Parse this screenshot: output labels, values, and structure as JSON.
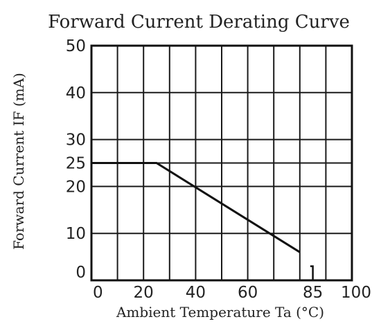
{
  "chart_data": {
    "type": "line",
    "title": "Forward Current Derating Curve",
    "xlabel": "Ambient Temperature Ta (°C)",
    "ylabel": "Forward Current  IF (mA)",
    "xlim": [
      0,
      100
    ],
    "ylim": [
      0,
      50
    ],
    "x_ticks": [
      0,
      20,
      40,
      60,
      85,
      100
    ],
    "y_ticks": [
      0,
      10,
      20,
      25,
      30,
      40,
      50
    ],
    "x_grid": [
      0,
      10,
      20,
      30,
      40,
      50,
      60,
      70,
      80,
      90,
      100
    ],
    "y_grid": [
      0,
      10,
      20,
      25,
      30,
      40,
      50
    ],
    "grid": true,
    "series": [
      {
        "x": [
          0,
          25,
          80
        ],
        "y": [
          25,
          25,
          6
        ]
      }
    ],
    "marker": {
      "x": [
        84,
        85,
        85
      ],
      "y": [
        3,
        3,
        0
      ]
    }
  }
}
